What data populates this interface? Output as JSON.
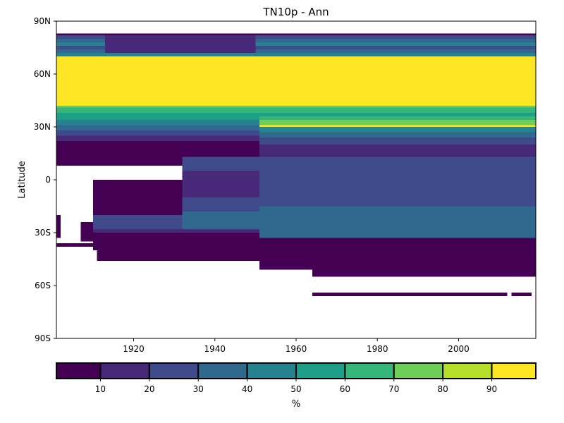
{
  "chart_data": {
    "type": "heatmap",
    "title": "TN10p - Ann",
    "ylabel": "Latitude",
    "xlabel": "",
    "xlim": [
      1901,
      2019
    ],
    "ylim": [
      -90,
      90
    ],
    "x_ticks": [
      {
        "value": 1920,
        "label": "1920"
      },
      {
        "value": 1940,
        "label": "1940"
      },
      {
        "value": 1960,
        "label": "1960"
      },
      {
        "value": 1980,
        "label": "1980"
      },
      {
        "value": 2000,
        "label": "2000"
      }
    ],
    "y_ticks": [
      {
        "value": 90,
        "label": "90N"
      },
      {
        "value": 60,
        "label": "60N"
      },
      {
        "value": 30,
        "label": "30N"
      },
      {
        "value": 0,
        "label": "0"
      },
      {
        "value": -30,
        "label": "30S"
      },
      {
        "value": -60,
        "label": "60S"
      },
      {
        "value": -90,
        "label": "90S"
      }
    ],
    "colorbar": {
      "label": "%",
      "boundaries": [
        1,
        10,
        20,
        30,
        40,
        50,
        60,
        70,
        80,
        90,
        99
      ],
      "tick_labels": [
        "10",
        "20",
        "30",
        "40",
        "50",
        "60",
        "70",
        "80",
        "90"
      ],
      "colors": [
        "#440154",
        "#482878",
        "#3e4a89",
        "#31688e",
        "#26828e",
        "#1f9e89",
        "#35b779",
        "#6ece58",
        "#b5de2b",
        "#fde725"
      ]
    },
    "cells": [
      {
        "x0": 1901,
        "x1": 2019,
        "y0": 82,
        "y1": 83,
        "v": 0
      },
      {
        "x0": 1901,
        "x1": 2019,
        "y0": 80,
        "y1": 82,
        "v": 2
      },
      {
        "x0": 1901,
        "x1": 2019,
        "y0": 78,
        "y1": 80,
        "v": 3
      },
      {
        "x0": 1901,
        "x1": 2019,
        "y0": 76,
        "y1": 78,
        "v": 4
      },
      {
        "x0": 1901,
        "x1": 2019,
        "y0": 74,
        "y1": 76,
        "v": 2
      },
      {
        "x0": 1901,
        "x1": 2019,
        "y0": 72,
        "y1": 74,
        "v": 3
      },
      {
        "x0": 1901,
        "x1": 2019,
        "y0": 70,
        "y1": 72,
        "v": 4
      },
      {
        "x0": 1913,
        "x1": 1950,
        "y0": 72,
        "y1": 82,
        "v": 1
      },
      {
        "x0": 1901,
        "x1": 2019,
        "y0": 42,
        "y1": 70,
        "v": 9
      },
      {
        "x0": 1901,
        "x1": 2019,
        "y0": 41,
        "y1": 42,
        "v": 7
      },
      {
        "x0": 1901,
        "x1": 2019,
        "y0": 38,
        "y1": 41,
        "v": 6
      },
      {
        "x0": 1901,
        "x1": 2019,
        "y0": 34,
        "y1": 38,
        "v": 5
      },
      {
        "x0": 1901,
        "x1": 2019,
        "y0": 31,
        "y1": 34,
        "v": 4
      },
      {
        "x0": 1901,
        "x1": 2019,
        "y0": 28,
        "y1": 31,
        "v": 3
      },
      {
        "x0": 1901,
        "x1": 1951,
        "y0": 25,
        "y1": 28,
        "v": 2
      },
      {
        "x0": 1901,
        "x1": 1951,
        "y0": 22,
        "y1": 25,
        "v": 1
      },
      {
        "x0": 1901,
        "x1": 1951,
        "y0": 13,
        "y1": 22,
        "v": 0
      },
      {
        "x0": 1901,
        "x1": 1951,
        "y0": 8,
        "y1": 13,
        "v": 0
      },
      {
        "x0": 1951,
        "x1": 2019,
        "y0": 34,
        "y1": 36,
        "v": 6
      },
      {
        "x0": 1951,
        "x1": 2019,
        "y0": 31,
        "y1": 34,
        "v": 7
      },
      {
        "x0": 1951,
        "x1": 2019,
        "y0": 30,
        "y1": 31,
        "v": 9
      },
      {
        "x0": 1951,
        "x1": 2019,
        "y0": 27,
        "y1": 30,
        "v": 4
      },
      {
        "x0": 1951,
        "x1": 2019,
        "y0": 24,
        "y1": 27,
        "v": 3
      },
      {
        "x0": 1951,
        "x1": 2019,
        "y0": 20,
        "y1": 24,
        "v": 2
      },
      {
        "x0": 1951,
        "x1": 2019,
        "y0": 15,
        "y1": 20,
        "v": 1
      },
      {
        "x0": 1951,
        "x1": 2019,
        "y0": 13,
        "y1": 15,
        "v": 1
      },
      {
        "x0": 2012,
        "x1": 2019,
        "y0": 0,
        "y1": 13,
        "v": 0
      },
      {
        "x0": 1932,
        "x1": 2019,
        "y0": -5,
        "y1": 13,
        "v": 2
      },
      {
        "x0": 1910,
        "x1": 1932,
        "y0": -10,
        "y1": 0,
        "v": 0
      },
      {
        "x0": 1932,
        "x1": 1951,
        "y0": -10,
        "y1": 5,
        "v": 1
      },
      {
        "x0": 1951,
        "x1": 2019,
        "y0": -15,
        "y1": -5,
        "v": 2
      },
      {
        "x0": 1910,
        "x1": 1932,
        "y0": -20,
        "y1": -10,
        "v": 0
      },
      {
        "x0": 1932,
        "x1": 1951,
        "y0": -18,
        "y1": -10,
        "v": 2
      },
      {
        "x0": 1910,
        "x1": 1932,
        "y0": -28,
        "y1": -20,
        "v": 2
      },
      {
        "x0": 1932,
        "x1": 1951,
        "y0": -28,
        "y1": -18,
        "v": 3
      },
      {
        "x0": 1951,
        "x1": 2019,
        "y0": -25,
        "y1": -15,
        "v": 3
      },
      {
        "x0": 1951,
        "x1": 2019,
        "y0": -33,
        "y1": -25,
        "v": 3
      },
      {
        "x0": 1910,
        "x1": 1932,
        "y0": -30,
        "y1": -28,
        "v": 1
      },
      {
        "x0": 1932,
        "x1": 1951,
        "y0": -30,
        "y1": -28,
        "v": 1
      },
      {
        "x0": 1907,
        "x1": 1910,
        "y0": -35,
        "y1": -24,
        "v": 0
      },
      {
        "x0": 1910,
        "x1": 1951,
        "y0": -40,
        "y1": -30,
        "v": 0
      },
      {
        "x0": 1951,
        "x1": 2019,
        "y0": -38,
        "y1": -33,
        "v": 0
      },
      {
        "x0": 1901,
        "x1": 1902,
        "y0": -33,
        "y1": -20,
        "v": 0
      },
      {
        "x0": 1901,
        "x1": 1910,
        "y0": -38,
        "y1": -36,
        "v": 0
      },
      {
        "x0": 1911,
        "x1": 1951,
        "y0": -46,
        "y1": -40,
        "v": 0
      },
      {
        "x0": 1951,
        "x1": 1964,
        "y0": -51,
        "y1": -38,
        "v": 0
      },
      {
        "x0": 1964,
        "x1": 2019,
        "y0": -55,
        "y1": -38,
        "v": 0
      },
      {
        "x0": 1964,
        "x1": 2012,
        "y0": -66,
        "y1": -64,
        "v": 0
      },
      {
        "x0": 2013,
        "x1": 2018,
        "y0": -66,
        "y1": -64,
        "v": 0
      }
    ]
  }
}
